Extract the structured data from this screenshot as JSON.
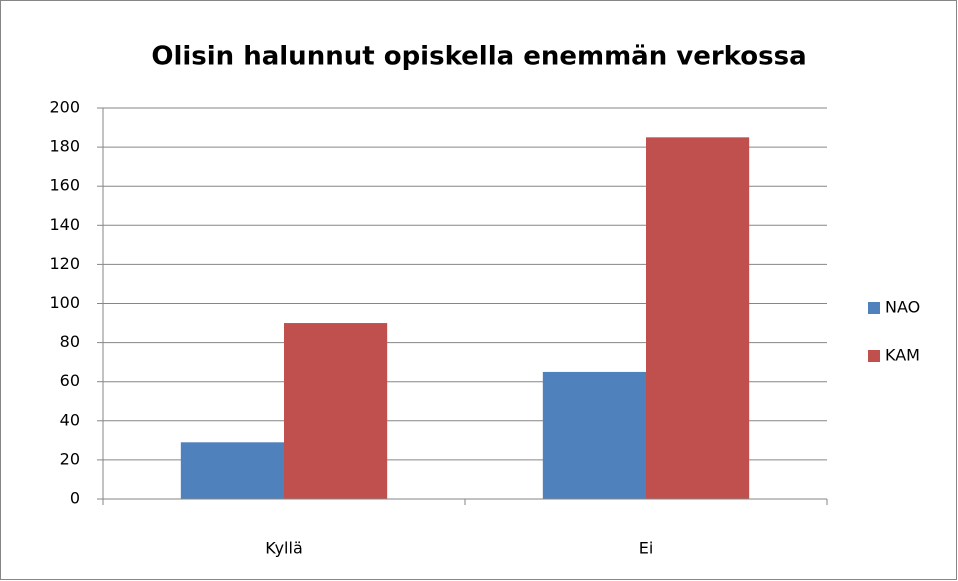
{
  "chart_data": {
    "type": "bar",
    "title": "Olisin halunnut opiskella enemmän verkossa",
    "categories": [
      "Kyllä",
      "Ei"
    ],
    "series": [
      {
        "name": "NAO",
        "color": "#4f81bd",
        "values": [
          29,
          65
        ]
      },
      {
        "name": "KAM",
        "color": "#c0504d",
        "values": [
          90,
          185
        ]
      }
    ],
    "ylim": [
      0,
      200
    ],
    "yticks": [
      0,
      20,
      40,
      60,
      80,
      100,
      120,
      140,
      160,
      180,
      200
    ],
    "grid": true,
    "legend": "right"
  }
}
